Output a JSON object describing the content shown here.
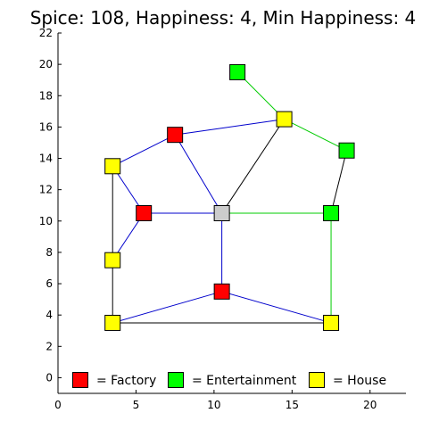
{
  "status": {
    "text": "Spice: 108, Happiness: 4, Min Happiness: 4",
    "spice": 108,
    "happiness": 4,
    "min_happiness": 4
  },
  "colors": {
    "factory": "#ff0000",
    "entertainment": "#00ff00",
    "house": "#ffff00",
    "selected": "#cccccc",
    "road_blue": "#0000cc",
    "road_green": "#00cc00",
    "road_black": "#000000"
  },
  "legend": [
    {
      "type": "factory",
      "label": "= Factory"
    },
    {
      "type": "entertainment",
      "label": "= Entertainment"
    },
    {
      "type": "house",
      "label": "= House"
    }
  ],
  "axes": {
    "x_ticks": [
      "0",
      "5",
      "10",
      "15",
      "20"
    ],
    "x_tick_values": [
      0,
      5,
      10,
      15,
      20
    ],
    "y_ticks": [
      "0",
      "2",
      "4",
      "6",
      "8",
      "10",
      "12",
      "14",
      "16",
      "18",
      "20",
      "22"
    ],
    "y_tick_values": [
      0,
      2,
      4,
      6,
      8,
      10,
      12,
      14,
      16,
      18,
      20,
      22
    ],
    "x_range": [
      0,
      22.3
    ],
    "y_range": [
      -1,
      22
    ]
  },
  "nodes": [
    {
      "id": "e1",
      "type": "entertainment",
      "x": 11.5,
      "y": 19.5
    },
    {
      "id": "h1",
      "type": "house",
      "x": 14.5,
      "y": 16.5
    },
    {
      "id": "e2",
      "type": "entertainment",
      "x": 18.5,
      "y": 14.5
    },
    {
      "id": "f1",
      "type": "factory",
      "x": 7.5,
      "y": 15.5
    },
    {
      "id": "h2",
      "type": "house",
      "x": 3.5,
      "y": 13.5
    },
    {
      "id": "f2",
      "type": "factory",
      "x": 5.5,
      "y": 10.5
    },
    {
      "id": "s1",
      "type": "selected",
      "x": 10.5,
      "y": 10.5
    },
    {
      "id": "e3",
      "type": "entertainment",
      "x": 17.5,
      "y": 10.5
    },
    {
      "id": "h3",
      "type": "house",
      "x": 3.5,
      "y": 7.5
    },
    {
      "id": "f3",
      "type": "factory",
      "x": 10.5,
      "y": 5.5
    },
    {
      "id": "h4",
      "type": "house",
      "x": 3.5,
      "y": 3.5
    },
    {
      "id": "h5",
      "type": "house",
      "x": 17.5,
      "y": 3.5
    }
  ],
  "edges": [
    {
      "from": "e1",
      "to": "h1",
      "color": "road_green"
    },
    {
      "from": "h1",
      "to": "e2",
      "color": "road_green"
    },
    {
      "from": "e2",
      "to": "e3",
      "color": "road_black"
    },
    {
      "from": "f1",
      "to": "h1",
      "color": "road_blue"
    },
    {
      "from": "h2",
      "to": "f1",
      "color": "road_blue"
    },
    {
      "from": "f1",
      "to": "s1",
      "color": "road_blue"
    },
    {
      "from": "s1",
      "to": "h1",
      "color": "road_black"
    },
    {
      "from": "h2",
      "to": "f2",
      "color": "road_blue"
    },
    {
      "from": "h2",
      "to": "h3",
      "color": "road_black"
    },
    {
      "from": "f2",
      "to": "s1",
      "color": "road_blue"
    },
    {
      "from": "f2",
      "to": "h3",
      "color": "road_blue"
    },
    {
      "from": "s1",
      "to": "e3",
      "color": "road_green"
    },
    {
      "from": "e3",
      "to": "h5",
      "color": "road_green"
    },
    {
      "from": "s1",
      "to": "f3",
      "color": "road_blue"
    },
    {
      "from": "h3",
      "to": "h4",
      "color": "road_black"
    },
    {
      "from": "h4",
      "to": "f3",
      "color": "road_blue"
    },
    {
      "from": "f3",
      "to": "h5",
      "color": "road_blue"
    },
    {
      "from": "h4",
      "to": "h5",
      "color": "road_black"
    }
  ]
}
